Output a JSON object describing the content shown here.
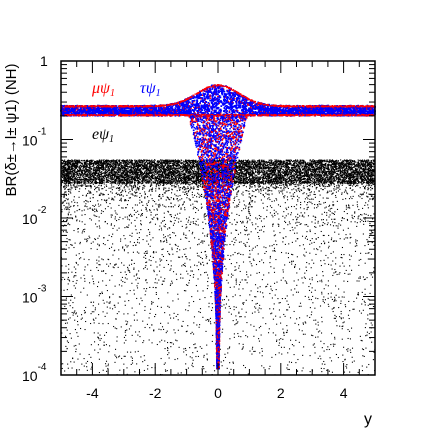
{
  "chart_data": {
    "type": "scatter",
    "title": "",
    "xlabel": "y",
    "ylabel": "BR(δ±→l± ψ1) (NH)",
    "xlim": [
      -5,
      5
    ],
    "ylim": [
      0.0001,
      1
    ],
    "yscale": "log",
    "x_ticks": [
      -4,
      -2,
      0,
      2,
      4
    ],
    "x_tick_labels": [
      "-4",
      "-2",
      "0",
      "2",
      "4"
    ],
    "y_ticks": [
      1,
      0.1,
      0.01,
      0.001,
      0.0001
    ],
    "y_tick_labels": [
      {
        "base": "",
        "exp": "1"
      },
      {
        "base": "10",
        "exp": "-1"
      },
      {
        "base": "10",
        "exp": "-2"
      },
      {
        "base": "10",
        "exp": "-3"
      },
      {
        "base": "10",
        "exp": "-4"
      }
    ],
    "series": [
      {
        "name": "eψ1",
        "color": "#000000",
        "description": "dense band of points between about 0.03 and 0.055 for all y, with a sparse tail down to 1e-4",
        "band_low": 0.028,
        "band_high": 0.055,
        "min": 0.0001
      },
      {
        "name": "μψ1",
        "color": "#ff0000",
        "description": "band near 0.2–0.27; peak of about 0.5 at y=0; dips down to about 1e-4 near y=0",
        "band_low": 0.2,
        "band_high": 0.27,
        "peak": 0.5
      },
      {
        "name": "τψ1",
        "color": "#0000ff",
        "description": "band near 0.2–0.27; peak of about 0.5 at y=0; dips down to about 1e-4 near y=0",
        "band_low": 0.2,
        "band_high": 0.27,
        "peak": 0.5
      }
    ],
    "legend": [
      {
        "mu": "μψ",
        "mu_sub": "1",
        "tau": "τψ",
        "tau_sub": "1"
      },
      {
        "e": "eψ",
        "e_sub": "1"
      }
    ],
    "mu_color": "#ff0000",
    "tau_color": "#0000ff",
    "e_color": "#000000"
  }
}
